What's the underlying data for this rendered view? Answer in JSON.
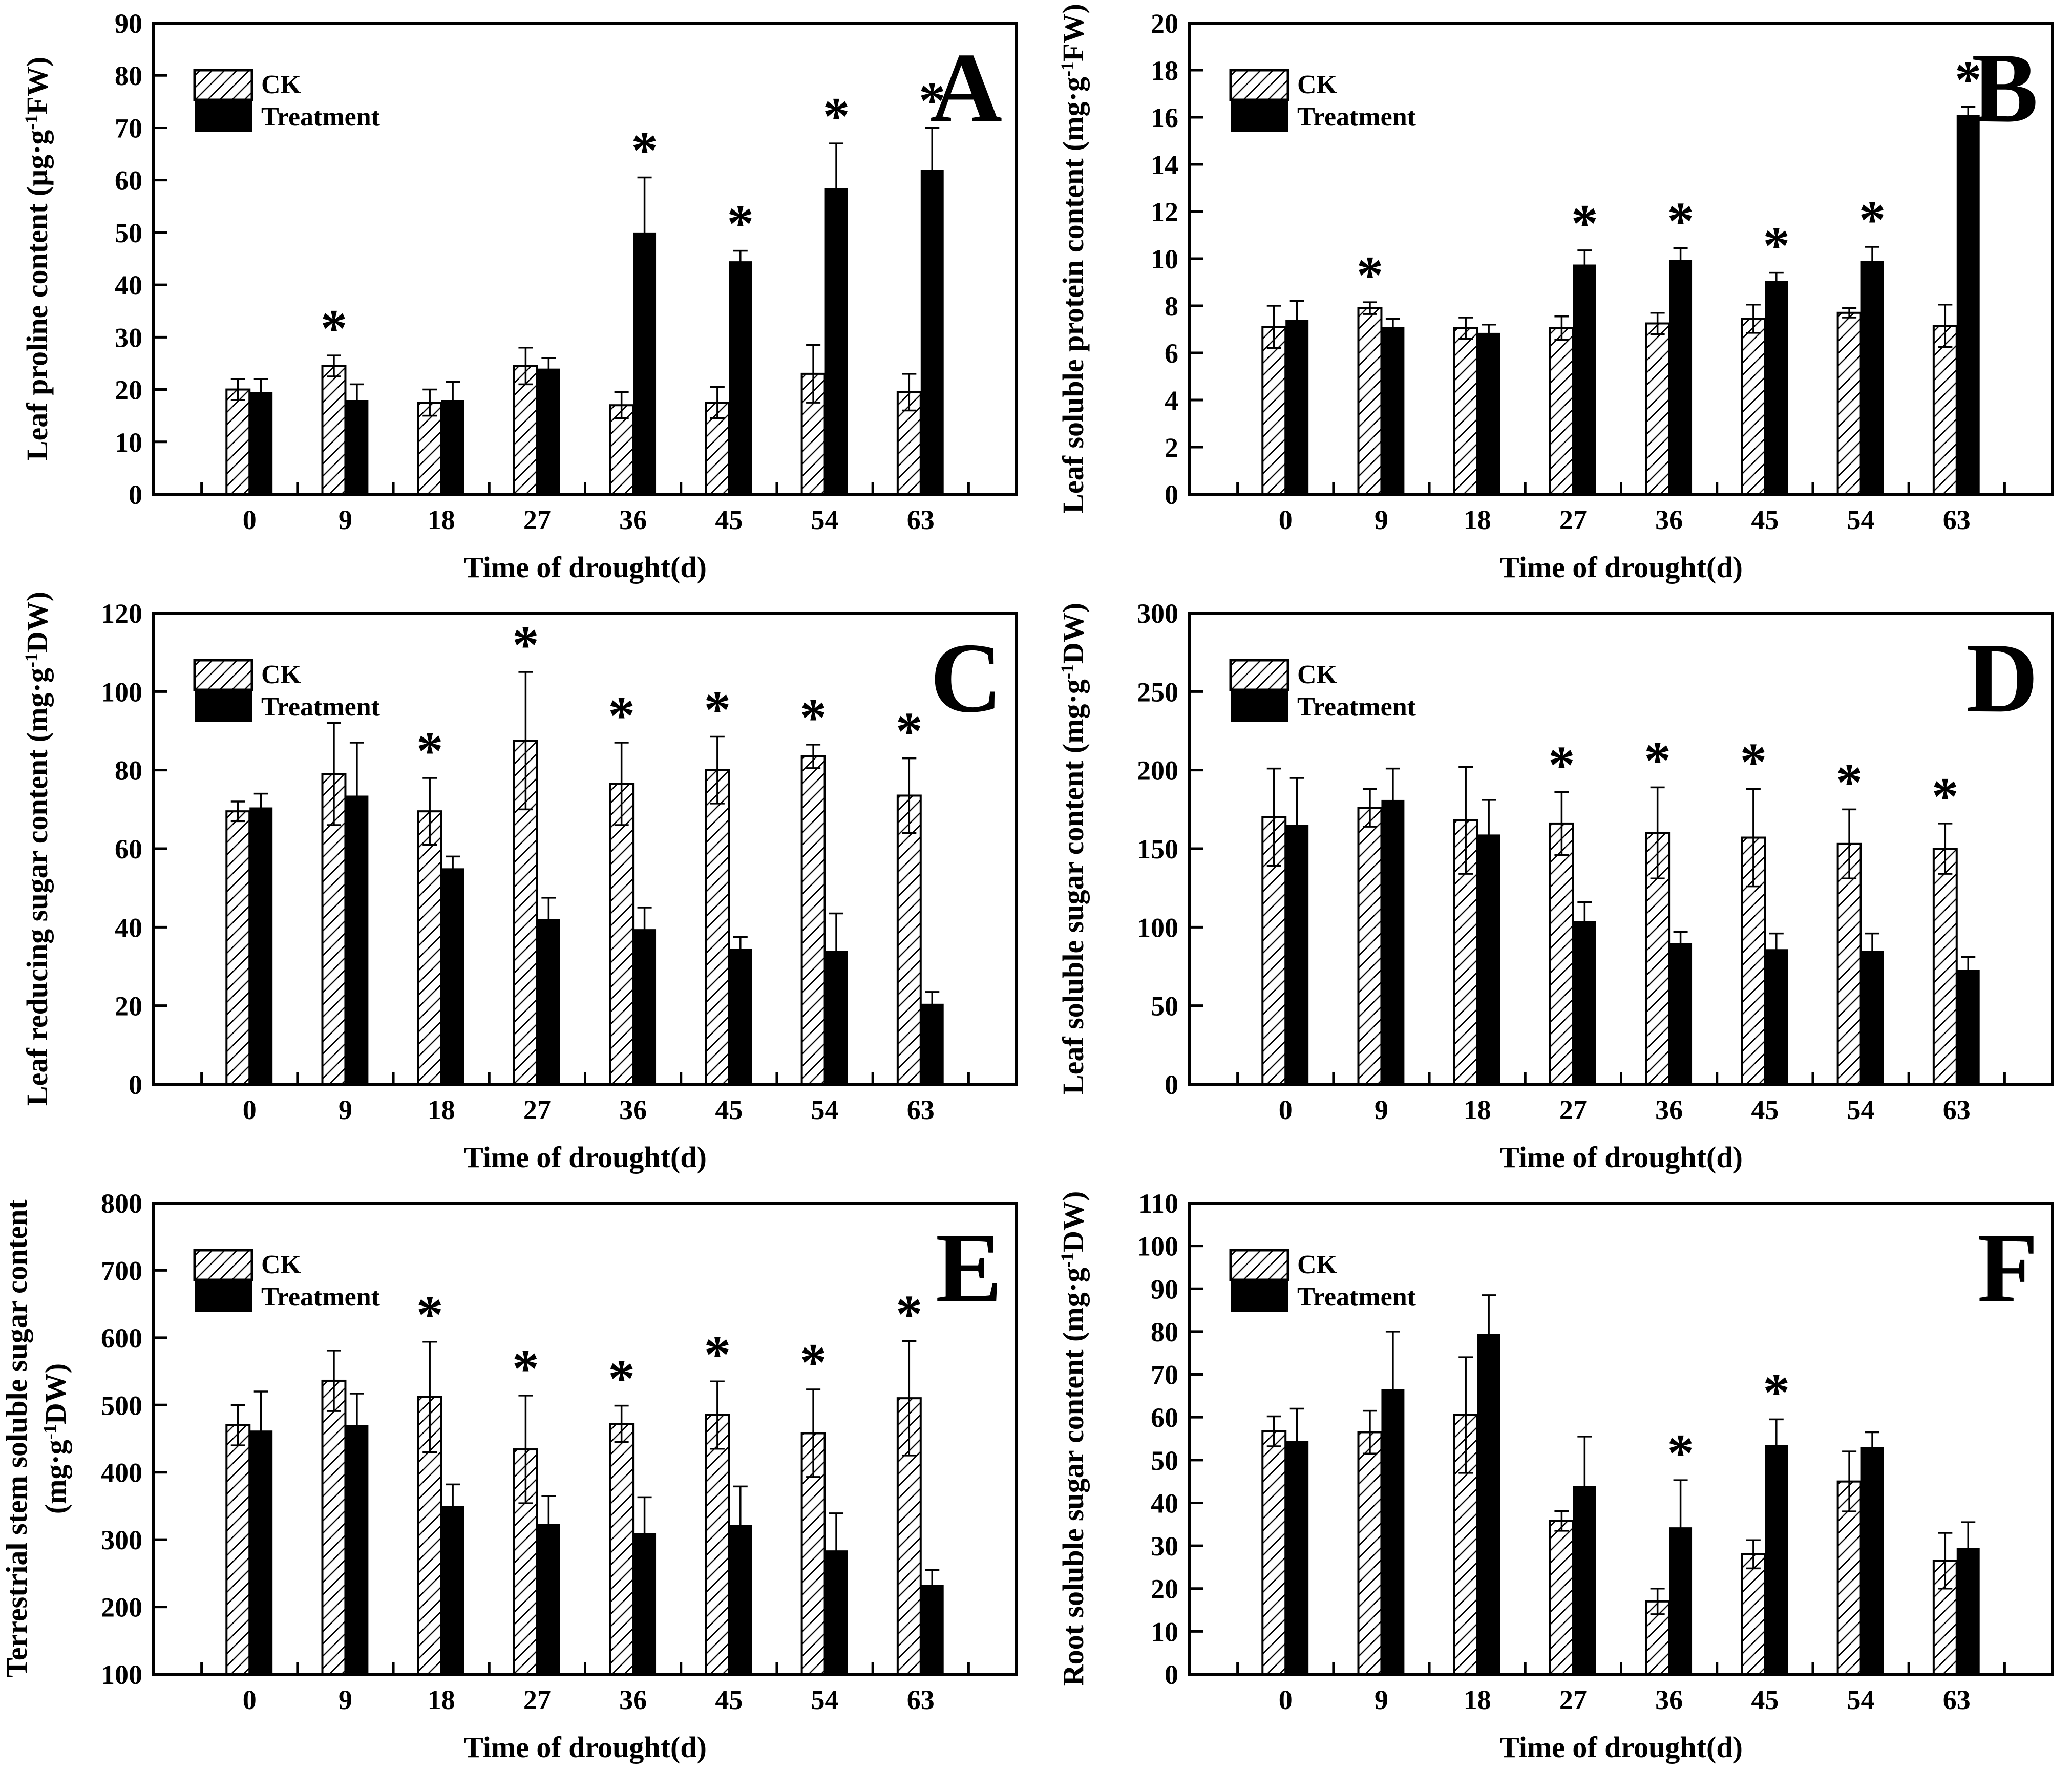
{
  "figure": {
    "xlabel": "Time of drought(d)",
    "categories": [
      "0",
      "9",
      "18",
      "27",
      "36",
      "45",
      "54",
      "63"
    ],
    "legend": {
      "ck_label": "CK",
      "treatment_label": "Treatment"
    },
    "significance_marker": "*",
    "colors": {
      "ck_fill": "#ffffff",
      "treatment_fill": "#000000",
      "axis": "#000000",
      "background": "#ffffff"
    }
  },
  "chart_data": [
    {
      "panel_letter": "A",
      "type": "bar",
      "ylabel": "Leaf proline content (μg·g^-1^FW)",
      "ylim": [
        0,
        90
      ],
      "ytick_step": 10,
      "series": [
        {
          "name": "CK",
          "values": [
            20,
            24.5,
            17.5,
            24.5,
            17,
            17.5,
            23,
            19.5
          ],
          "errors": [
            2,
            2,
            2.5,
            3.5,
            2.5,
            3,
            5.5,
            3.5
          ]
        },
        {
          "name": "Treatment",
          "values": [
            19.5,
            18,
            18,
            24,
            50,
            44.5,
            58.5,
            62
          ],
          "errors": [
            2.5,
            3,
            3.5,
            2,
            10.5,
            2,
            8.5,
            8
          ]
        }
      ],
      "asterisks": [
        {
          "category": "9",
          "series": "CK"
        },
        {
          "category": "36",
          "series": "Treatment"
        },
        {
          "category": "45",
          "series": "Treatment"
        },
        {
          "category": "54",
          "series": "Treatment"
        },
        {
          "category": "63",
          "series": "Treatment"
        }
      ]
    },
    {
      "panel_letter": "B",
      "type": "bar",
      "ylabel": "Leaf soluble protein content (mg·g^-1^FW)",
      "ylim": [
        0,
        20
      ],
      "ytick_step": 2,
      "series": [
        {
          "name": "CK",
          "values": [
            7.1,
            7.9,
            7.05,
            7.05,
            7.25,
            7.45,
            7.7,
            7.15
          ],
          "errors": [
            0.9,
            0.25,
            0.45,
            0.5,
            0.45,
            0.6,
            0.2,
            0.9
          ]
        },
        {
          "name": "Treatment",
          "values": [
            7.4,
            7.1,
            6.85,
            9.75,
            9.95,
            9.05,
            9.9,
            16.1
          ],
          "errors": [
            0.8,
            0.35,
            0.35,
            0.6,
            0.5,
            0.35,
            0.6,
            0.35
          ]
        }
      ],
      "asterisks": [
        {
          "category": "9",
          "series": "CK"
        },
        {
          "category": "27",
          "series": "Treatment"
        },
        {
          "category": "36",
          "series": "Treatment"
        },
        {
          "category": "45",
          "series": "Treatment"
        },
        {
          "category": "54",
          "series": "Treatment"
        },
        {
          "category": "63",
          "series": "Treatment"
        }
      ]
    },
    {
      "panel_letter": "C",
      "type": "bar",
      "ylabel": "Leaf reducing sugar content (mg·g^-1^DW)",
      "ylim": [
        0,
        120
      ],
      "ytick_step": 20,
      "series": [
        {
          "name": "CK",
          "values": [
            69.5,
            79,
            69.5,
            87.5,
            76.5,
            80,
            83.5,
            73.5
          ],
          "errors": [
            2.5,
            13,
            8.5,
            17.5,
            10.5,
            8.5,
            3,
            9.5
          ]
        },
        {
          "name": "Treatment",
          "values": [
            70.5,
            73.5,
            55,
            42,
            39.5,
            34.5,
            34,
            20.5
          ],
          "errors": [
            3.5,
            13.5,
            3,
            5.5,
            5.5,
            3,
            9.5,
            3
          ]
        }
      ],
      "asterisks": [
        {
          "category": "18",
          "series": "CK"
        },
        {
          "category": "27",
          "series": "CK"
        },
        {
          "category": "36",
          "series": "CK"
        },
        {
          "category": "45",
          "series": "CK"
        },
        {
          "category": "54",
          "series": "CK"
        },
        {
          "category": "63",
          "series": "CK"
        }
      ]
    },
    {
      "panel_letter": "D",
      "type": "bar",
      "ylabel": "Leaf soluble sugar content (mg·g^-1^DW)",
      "ylim": [
        0,
        300
      ],
      "ytick_step": 50,
      "series": [
        {
          "name": "CK",
          "values": [
            170,
            176,
            168,
            166,
            160,
            157,
            153,
            150
          ],
          "errors": [
            31,
            12,
            34,
            20,
            29,
            31,
            22,
            16
          ]
        },
        {
          "name": "Treatment",
          "values": [
            165,
            181,
            159,
            104,
            90,
            86,
            85,
            73
          ],
          "errors": [
            30,
            20,
            22,
            12,
            7,
            10,
            11,
            8
          ]
        }
      ],
      "asterisks": [
        {
          "category": "27",
          "series": "CK"
        },
        {
          "category": "36",
          "series": "CK"
        },
        {
          "category": "45",
          "series": "CK"
        },
        {
          "category": "54",
          "series": "CK"
        },
        {
          "category": "63",
          "series": "CK"
        }
      ]
    },
    {
      "panel_letter": "E",
      "type": "bar",
      "ylabel_lines": [
        "Terrestrial stem soluble sugar content",
        "(mg·g^-1^DW)"
      ],
      "ylim": [
        100,
        800
      ],
      "ytick_step": 100,
      "series": [
        {
          "name": "CK",
          "values": [
            470,
            536,
            512,
            434,
            472,
            485,
            458,
            510
          ],
          "errors": [
            30,
            45,
            82,
            80,
            27,
            50,
            65,
            85
          ]
        },
        {
          "name": "Treatment",
          "values": [
            462,
            470,
            350,
            323,
            310,
            322,
            284,
            233
          ],
          "errors": [
            58,
            47,
            32,
            42,
            53,
            57,
            55,
            22
          ]
        }
      ],
      "asterisks": [
        {
          "category": "18",
          "series": "CK"
        },
        {
          "category": "27",
          "series": "CK"
        },
        {
          "category": "36",
          "series": "CK"
        },
        {
          "category": "45",
          "series": "CK"
        },
        {
          "category": "54",
          "series": "CK"
        },
        {
          "category": "63",
          "series": "CK"
        }
      ]
    },
    {
      "panel_letter": "F",
      "type": "bar",
      "ylabel": "Root soluble sugar content (mg·g^-1^DW)",
      "ylim": [
        0,
        110
      ],
      "ytick_step": 10,
      "series": [
        {
          "name": "CK",
          "values": [
            56.7,
            56.5,
            60.5,
            35.8,
            17,
            28,
            45,
            26.5
          ],
          "errors": [
            3.5,
            5,
            13.5,
            2.3,
            3,
            3.3,
            7,
            6.5
          ]
        },
        {
          "name": "Treatment",
          "values": [
            54.5,
            66.5,
            79.5,
            44,
            34.3,
            53.5,
            53,
            29.5
          ],
          "errors": [
            7.5,
            13.5,
            9,
            11.5,
            11,
            6,
            3.5,
            6
          ]
        }
      ],
      "asterisks": [
        {
          "category": "36",
          "series": "Treatment"
        },
        {
          "category": "45",
          "series": "Treatment"
        }
      ]
    }
  ]
}
